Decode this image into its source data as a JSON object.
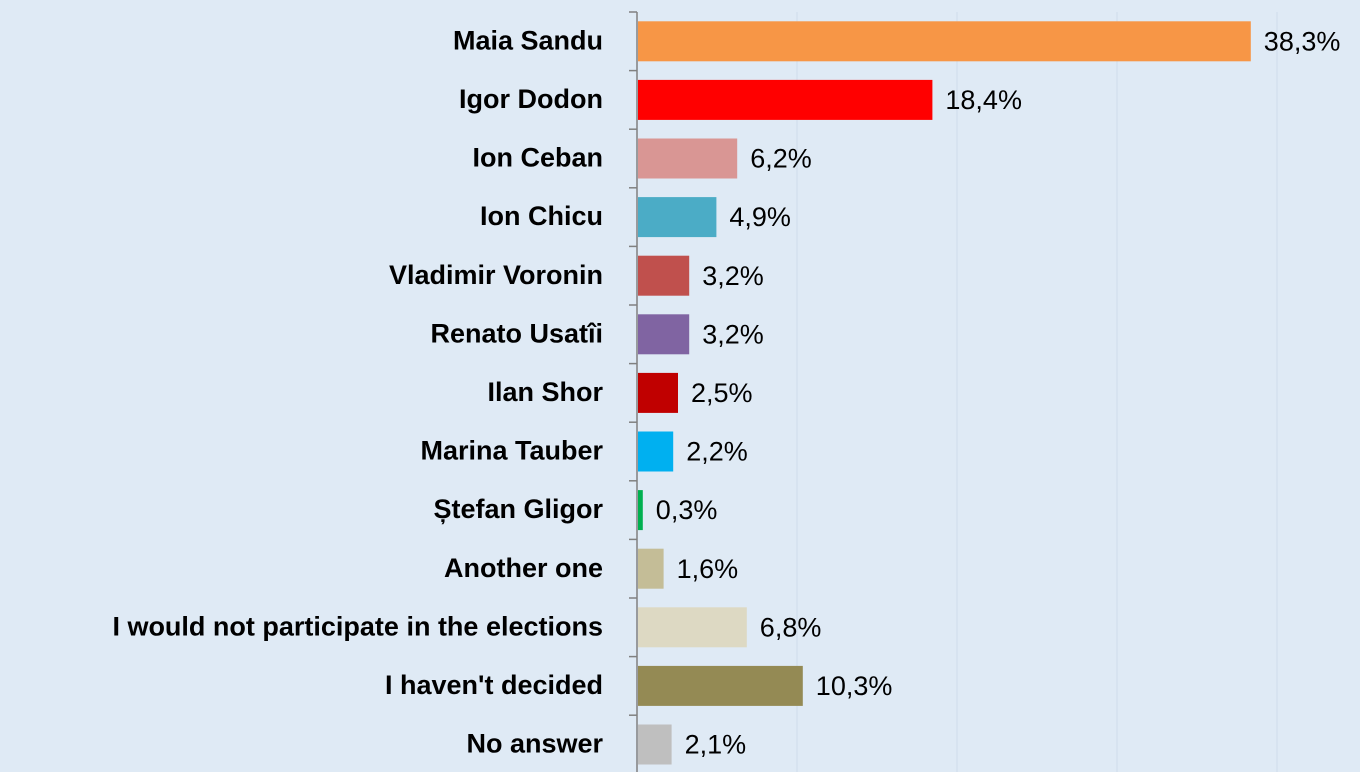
{
  "chart_data": {
    "type": "barh",
    "categories": [
      "Maia Sandu",
      "Igor Dodon",
      "Ion Ceban",
      "Ion Chicu",
      "Vladimir Voronin",
      "Renato Usatîi",
      "Ilan Shor",
      "Marina Tauber",
      "Ștefan Gligor",
      "Another one",
      "I would not participate in the elections",
      "I haven't decided",
      "No answer"
    ],
    "values": [
      38.3,
      18.4,
      6.2,
      4.9,
      3.2,
      3.2,
      2.5,
      2.2,
      0.3,
      1.6,
      6.8,
      10.3,
      2.1
    ],
    "value_labels": [
      "38,3%",
      "18,4%",
      "6,2%",
      "4,9%",
      "3,2%",
      "3,2%",
      "2,5%",
      "2,2%",
      "0,3%",
      "1,6%",
      "6,8%",
      "10,3%",
      "2,1%"
    ],
    "colors": [
      "#f79646",
      "#ff0000",
      "#d99694",
      "#4bacc6",
      "#c0504d",
      "#8064a2",
      "#c00000",
      "#00b0f0",
      "#00b050",
      "#c4bd97",
      "#ddd9c3",
      "#948a54",
      "#bfbfbf"
    ],
    "xlim": [
      0,
      45
    ],
    "xticks": [
      0,
      10,
      20,
      30,
      40
    ],
    "grid": true
  }
}
